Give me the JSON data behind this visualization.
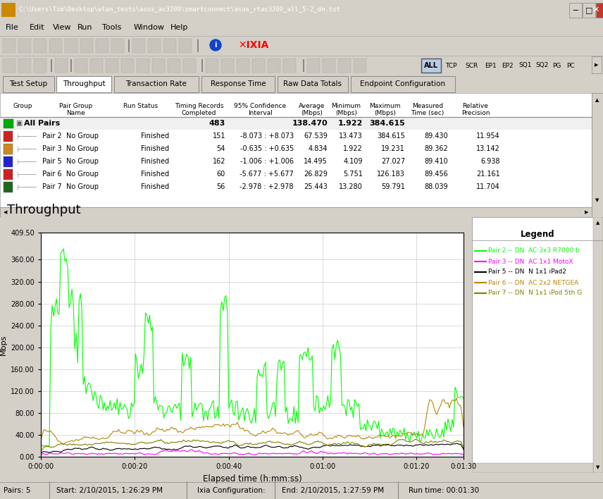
{
  "title_bar": "C:\\Users\\Tim\\Desktop\\wlan_tests\\asus_ac3200\\smartconnect\\asus_rtac3200_all_5-2_dn.tst",
  "menu_items": [
    "File",
    "Edit",
    "View",
    "Run",
    "Tools",
    "Window",
    "Help"
  ],
  "tabs": [
    "Test Setup",
    "Throughput",
    "Transaction Rate",
    "Response Time",
    "Raw Data Totals",
    "Endpoint Configuration"
  ],
  "active_tab": "Throughput",
  "all_pairs_row": {
    "label": "All Pairs",
    "timing": "483",
    "avg": "138.470",
    "min": "1.922",
    "max": "384.615"
  },
  "table_rows": [
    {
      "name": "Pair 2  No Group",
      "status": "Finished",
      "timing": "151",
      "conf": "-8.073 : +8.073",
      "avg": "67.539",
      "min": "13.473",
      "max": "384.615",
      "measured": "89.430",
      "rel": "11.954"
    },
    {
      "name": "Pair 3  No Group",
      "status": "Finished",
      "timing": "54",
      "conf": "-0.635 : +0.635",
      "avg": "4.834",
      "min": "1.922",
      "max": "19.231",
      "measured": "89.362",
      "rel": "13.142"
    },
    {
      "name": "Pair 5  No Group",
      "status": "Finished",
      "timing": "162",
      "conf": "-1.006 : +1.006",
      "avg": "14.495",
      "min": "4.109",
      "max": "27.027",
      "measured": "89.410",
      "rel": "6.938"
    },
    {
      "name": "Pair 6  No Group",
      "status": "Finished",
      "timing": "60",
      "conf": "-5.677 : +5.677",
      "avg": "26.829",
      "min": "5.751",
      "max": "126.183",
      "measured": "89.456",
      "rel": "21.161"
    },
    {
      "name": "Pair 7  No Group",
      "status": "Finished",
      "timing": "56",
      "conf": "-2.978 : +2.978",
      "avg": "25.443",
      "min": "13.280",
      "max": "59.791",
      "measured": "88.039",
      "rel": "11.704"
    }
  ],
  "chart_title": "Throughput",
  "ylabel": "Mbps",
  "xlabel": "Elapsed time (h:mm:ss)",
  "yticks": [
    0.0,
    40.0,
    80.0,
    120.0,
    160.0,
    200.0,
    240.0,
    280.0,
    320.0,
    360.0,
    409.5
  ],
  "xtick_labels": [
    "0:00:00",
    "0:00:20",
    "0:00:40",
    "0:01:00",
    "0:01:20",
    "0:01:30"
  ],
  "xtick_positions": [
    0,
    20,
    40,
    60,
    80,
    90
  ],
  "total_seconds": 90,
  "legend_entries": [
    {
      "label": "Pair 2 -- DN  AC 3x3 R7000 b",
      "color": "#00ff00"
    },
    {
      "label": "Pair 3 -- DN  AC 1x1 MotoX",
      "color": "#ff00ff"
    },
    {
      "label": "Pair 5 -- DN  N 1x1 iPad2",
      "color": "#000000"
    },
    {
      "label": "Pair 6 -- DN  AC 2x2 NETGEA",
      "color": "#b8860b"
    },
    {
      "label": "Pair 7 -- DN  N 1x1 iPod 5th G",
      "color": "#808000"
    }
  ],
  "bg_color": "#d4d0c8",
  "status_bar_left": "Pairs: 5",
  "status_bar_mid1": "Start: 2/10/2015, 1:26:29 PM",
  "status_bar_mid2": "Ixia Configuration:",
  "status_bar_mid3": "End: 2/10/2015, 1:27:59 PM",
  "status_bar_right": "Run time: 00:01:30"
}
